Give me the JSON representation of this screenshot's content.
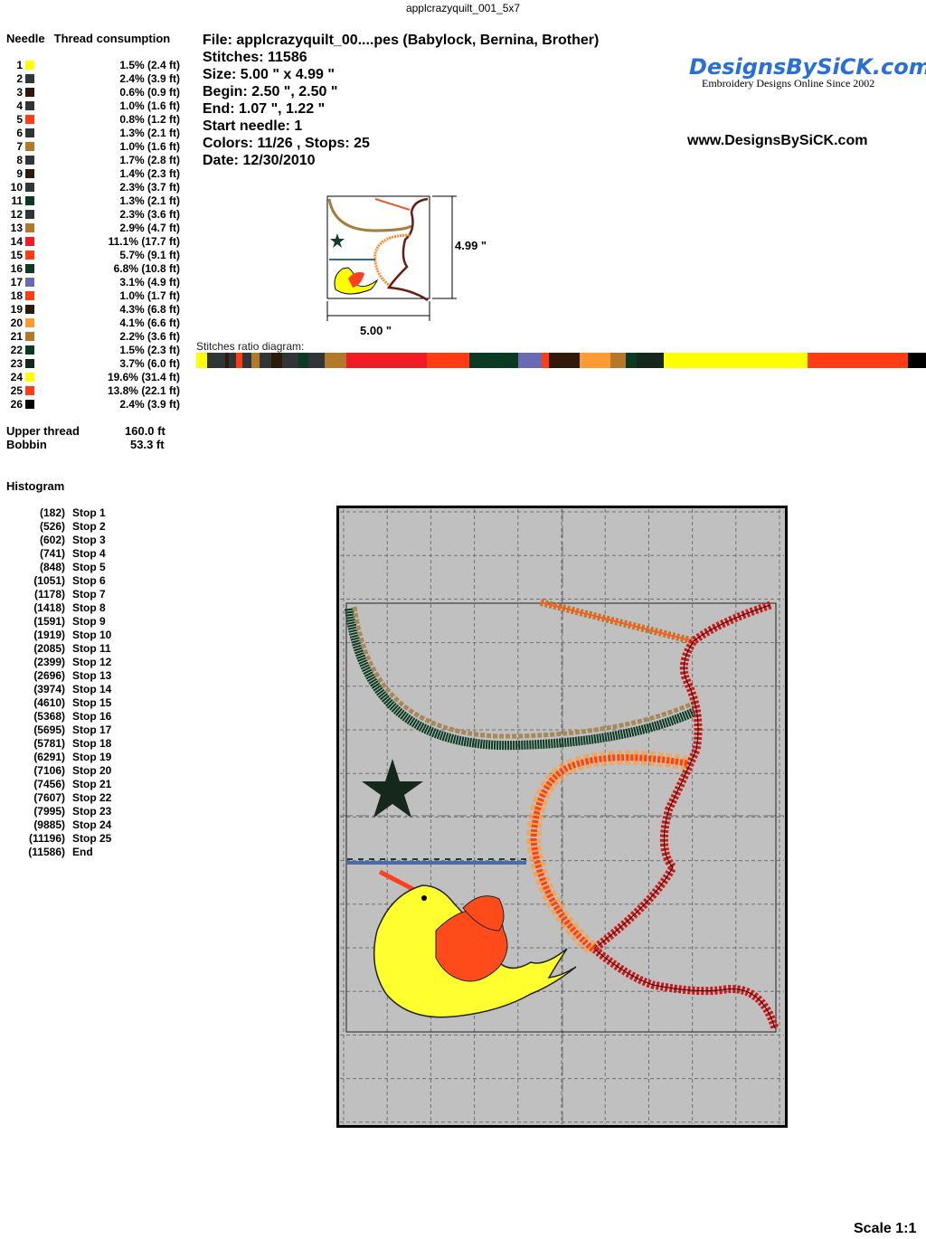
{
  "title": "applcrazyquilt_001_5x7",
  "needle_table": {
    "header_needle": "Needle",
    "header_consumption": "Thread consumption",
    "rows": [
      {
        "n": "1",
        "color": "#ffff00",
        "pct": 1.5,
        "text": "1.5% (2.4 ft)"
      },
      {
        "n": "2",
        "color": "#303638",
        "pct": 2.4,
        "text": "2.4% (3.9 ft)"
      },
      {
        "n": "3",
        "color": "#2e1a0a",
        "pct": 0.6,
        "text": "0.6% (0.9 ft)"
      },
      {
        "n": "4",
        "color": "#303638",
        "pct": 1.0,
        "text": "1.0% (1.6 ft)"
      },
      {
        "n": "5",
        "color": "#ff3c14",
        "pct": 0.8,
        "text": "0.8% (1.2 ft)"
      },
      {
        "n": "6",
        "color": "#303638",
        "pct": 1.3,
        "text": "1.3% (2.1 ft)"
      },
      {
        "n": "7",
        "color": "#b4782a",
        "pct": 1.0,
        "text": "1.0% (1.6 ft)"
      },
      {
        "n": "8",
        "color": "#303638",
        "pct": 1.7,
        "text": "1.7% (2.8 ft)"
      },
      {
        "n": "9",
        "color": "#2e1a0a",
        "pct": 1.4,
        "text": "1.4% (2.3 ft)"
      },
      {
        "n": "10",
        "color": "#303638",
        "pct": 2.3,
        "text": "2.3% (3.7 ft)"
      },
      {
        "n": "11",
        "color": "#0a3a22",
        "pct": 1.3,
        "text": "1.3% (2.1 ft)"
      },
      {
        "n": "12",
        "color": "#303638",
        "pct": 2.3,
        "text": "2.3% (3.6 ft)"
      },
      {
        "n": "13",
        "color": "#b4782a",
        "pct": 2.9,
        "text": "2.9% (4.7 ft)"
      },
      {
        "n": "14",
        "color": "#ee1c24",
        "pct": 11.1,
        "text": "11.1% (17.7 ft)"
      },
      {
        "n": "15",
        "color": "#ff3c14",
        "pct": 5.7,
        "text": "5.7% (9.1 ft)"
      },
      {
        "n": "16",
        "color": "#0a3a22",
        "pct": 6.8,
        "text": "6.8% (10.8 ft)"
      },
      {
        "n": "17",
        "color": "#6a6ab4",
        "pct": 3.1,
        "text": "3.1% (4.9 ft)"
      },
      {
        "n": "18",
        "color": "#ff3c14",
        "pct": 1.0,
        "text": "1.0% (1.7 ft)"
      },
      {
        "n": "19",
        "color": "#2e1a0a",
        "pct": 4.3,
        "text": "4.3% (6.8 ft)"
      },
      {
        "n": "20",
        "color": "#ff9a34",
        "pct": 4.1,
        "text": "4.1% (6.6 ft)"
      },
      {
        "n": "21",
        "color": "#b4782a",
        "pct": 2.2,
        "text": "2.2% (3.6 ft)"
      },
      {
        "n": "22",
        "color": "#0a3a22",
        "pct": 1.5,
        "text": "1.5% (2.3 ft)"
      },
      {
        "n": "23",
        "color": "#16281c",
        "pct": 3.7,
        "text": "3.7% (6.0 ft)"
      },
      {
        "n": "24",
        "color": "#ffff00",
        "pct": 19.6,
        "text": "19.6% (31.4 ft)"
      },
      {
        "n": "25",
        "color": "#ff3c14",
        "pct": 13.8,
        "text": "13.8% (22.1 ft)"
      },
      {
        "n": "26",
        "color": "#000000",
        "pct": 2.4,
        "text": "2.4% (3.9 ft)"
      }
    ]
  },
  "totals": {
    "upper_label": "Upper thread",
    "upper_value": "160.0 ft",
    "bobbin_label": "Bobbin",
    "bobbin_value": "53.3 ft"
  },
  "histogram": {
    "title": "Histogram",
    "rows": [
      [
        "(182)",
        "Stop 1"
      ],
      [
        "(526)",
        "Stop 2"
      ],
      [
        "(602)",
        "Stop 3"
      ],
      [
        "(741)",
        "Stop 4"
      ],
      [
        "(848)",
        "Stop 5"
      ],
      [
        "(1051)",
        "Stop 6"
      ],
      [
        "(1178)",
        "Stop 7"
      ],
      [
        "(1418)",
        "Stop 8"
      ],
      [
        "(1591)",
        "Stop 9"
      ],
      [
        "(1919)",
        "Stop 10"
      ],
      [
        "(2085)",
        "Stop 11"
      ],
      [
        "(2399)",
        "Stop 12"
      ],
      [
        "(2696)",
        "Stop 13"
      ],
      [
        "(3974)",
        "Stop 14"
      ],
      [
        "(4610)",
        "Stop 15"
      ],
      [
        "(5368)",
        "Stop 16"
      ],
      [
        "(5695)",
        "Stop 17"
      ],
      [
        "(5781)",
        "Stop 18"
      ],
      [
        "(6291)",
        "Stop 19"
      ],
      [
        "(7106)",
        "Stop 20"
      ],
      [
        "(7456)",
        "Stop 21"
      ],
      [
        "(7607)",
        "Stop 22"
      ],
      [
        "(7995)",
        "Stop 23"
      ],
      [
        "(9885)",
        "Stop 24"
      ],
      [
        "(11196)",
        "Stop 25"
      ],
      [
        "(11586)",
        "End"
      ]
    ]
  },
  "info": {
    "file": "File: applcrazyquilt_00....pes  (Babylock, Bernina, Brother)",
    "stitches": "Stitches: 11586",
    "size": "Size: 5.00 \" x 4.99 \"",
    "begin": "Begin: 2.50 \", 2.50 \"",
    "end": "End: 1.07 \", 1.22 \"",
    "start_needle": "Start needle: 1",
    "colors": "Colors: 11/26 , Stops: 25",
    "date": "Date: 12/30/2010"
  },
  "logo": {
    "name": "DesignsBySiCK.com",
    "tagline": "Embroidery Designs Online Since 2002",
    "color": "#2a6fd6"
  },
  "url": "www.DesignsBySiCK.com",
  "preview": {
    "height_label": "4.99 \"",
    "width_label": "5.00 \""
  },
  "ratio_label": "Stitches ratio diagram:",
  "scale": "Scale 1:1"
}
